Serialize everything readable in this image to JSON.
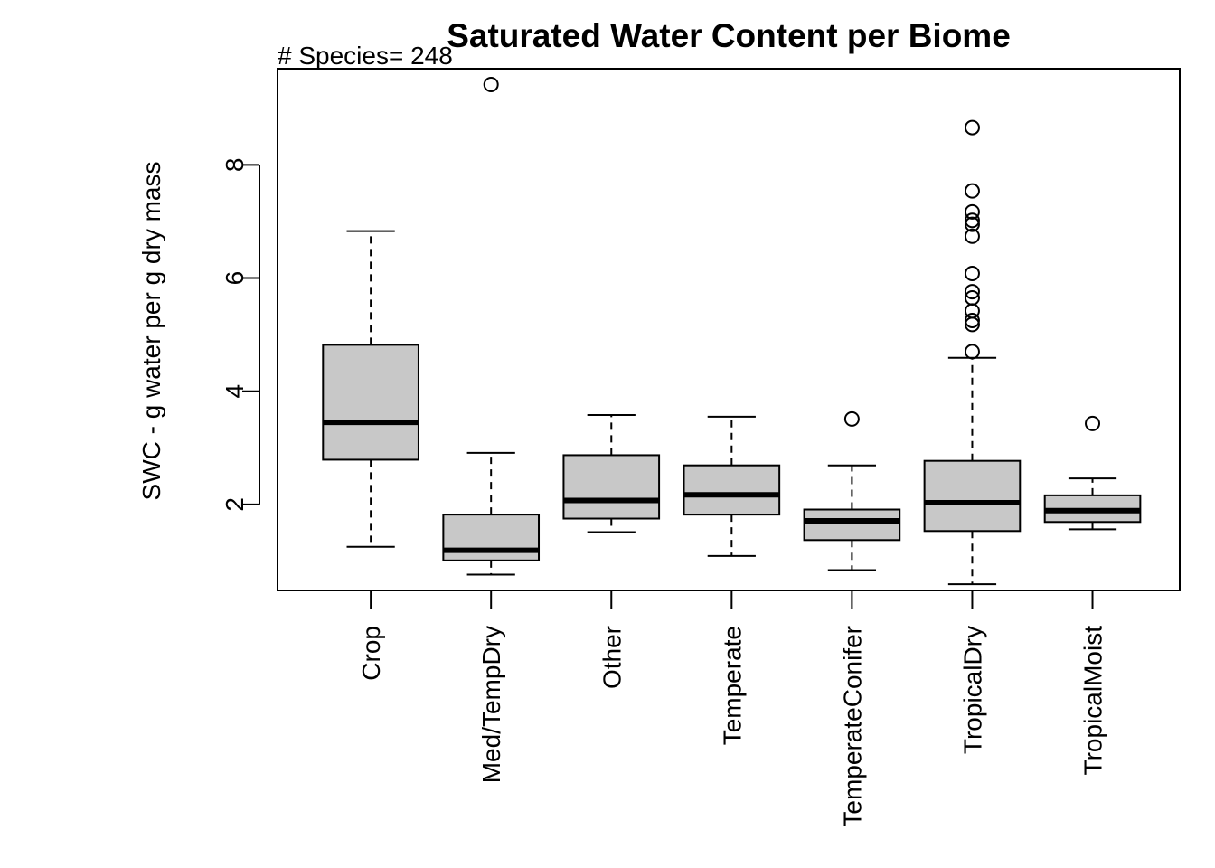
{
  "chart_data": {
    "type": "boxplot",
    "title": "Saturated Water Content per Biome",
    "annotation": "# Species= 248",
    "xlabel": "",
    "ylabel": "SWC - g water per g dry mass",
    "yticks": [
      2,
      4,
      6,
      8
    ],
    "ylim": [
      0.48,
      9.7
    ],
    "grid": false,
    "legend": "none",
    "box_fill": "#c8c8c8",
    "categories": [
      "Crop",
      "Med/TempDry",
      "Other",
      "Temperate",
      "TemperateConifer",
      "TropicalDry",
      "TropicalMoist"
    ],
    "boxes": [
      {
        "min": 1.25,
        "q1": 2.79,
        "median": 3.45,
        "q3": 4.82,
        "max": 6.83,
        "outliers": []
      },
      {
        "min": 0.76,
        "q1": 1.01,
        "median": 1.19,
        "q3": 1.82,
        "max": 2.91,
        "outliers": [
          9.42
        ]
      },
      {
        "min": 1.51,
        "q1": 1.75,
        "median": 2.07,
        "q3": 2.87,
        "max": 3.58,
        "outliers": []
      },
      {
        "min": 1.09,
        "q1": 1.82,
        "median": 2.17,
        "q3": 2.69,
        "max": 3.55,
        "outliers": []
      },
      {
        "min": 0.84,
        "q1": 1.37,
        "median": 1.71,
        "q3": 1.91,
        "max": 2.69,
        "outliers": [
          3.51
        ]
      },
      {
        "min": 0.59,
        "q1": 1.53,
        "median": 2.03,
        "q3": 2.77,
        "max": 4.59,
        "outliers": [
          4.7,
          5.18,
          5.25,
          5.42,
          5.65,
          5.76,
          6.08,
          6.74,
          6.95,
          7.02,
          7.17,
          7.54,
          8.66
        ]
      },
      {
        "min": 1.56,
        "q1": 1.69,
        "median": 1.89,
        "q3": 2.16,
        "max": 2.46,
        "outliers": [
          3.43
        ]
      }
    ]
  }
}
